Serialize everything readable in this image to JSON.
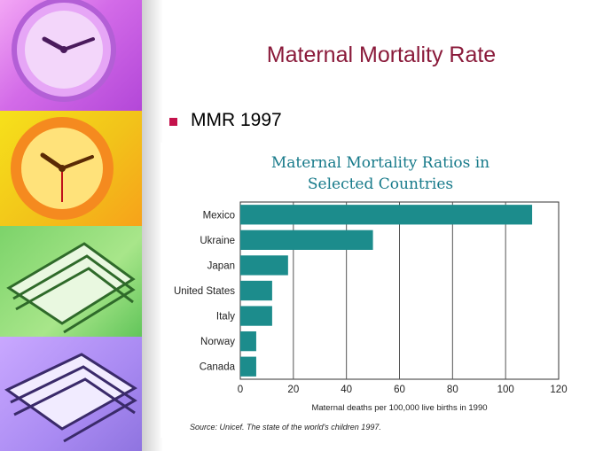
{
  "slide": {
    "title": "Maternal Mortality Rate",
    "bullet": "MMR 1997"
  },
  "colors": {
    "title": "#8a1a3a",
    "bullet": "#c4124c",
    "bars": "#1c8c8c",
    "chart_title": "#177a8a"
  },
  "chart_data": {
    "type": "bar",
    "orientation": "horizontal",
    "title": "Maternal Mortality Ratios in Selected Countries",
    "title_lines": [
      "Maternal Mortality Ratios in",
      "Selected Countries"
    ],
    "categories": [
      "Mexico",
      "Ukraine",
      "Japan",
      "United States",
      "Italy",
      "Norway",
      "Canada"
    ],
    "values": [
      110,
      50,
      18,
      12,
      12,
      6,
      6
    ],
    "xlabel": "Maternal deaths per 100,000 live births in 1990",
    "ylabel": "",
    "xlim": [
      0,
      120
    ],
    "xticks": [
      0,
      20,
      40,
      60,
      80,
      100,
      120
    ],
    "grid": true,
    "source": "Source: Unicef. The state of the world's children 1997."
  }
}
